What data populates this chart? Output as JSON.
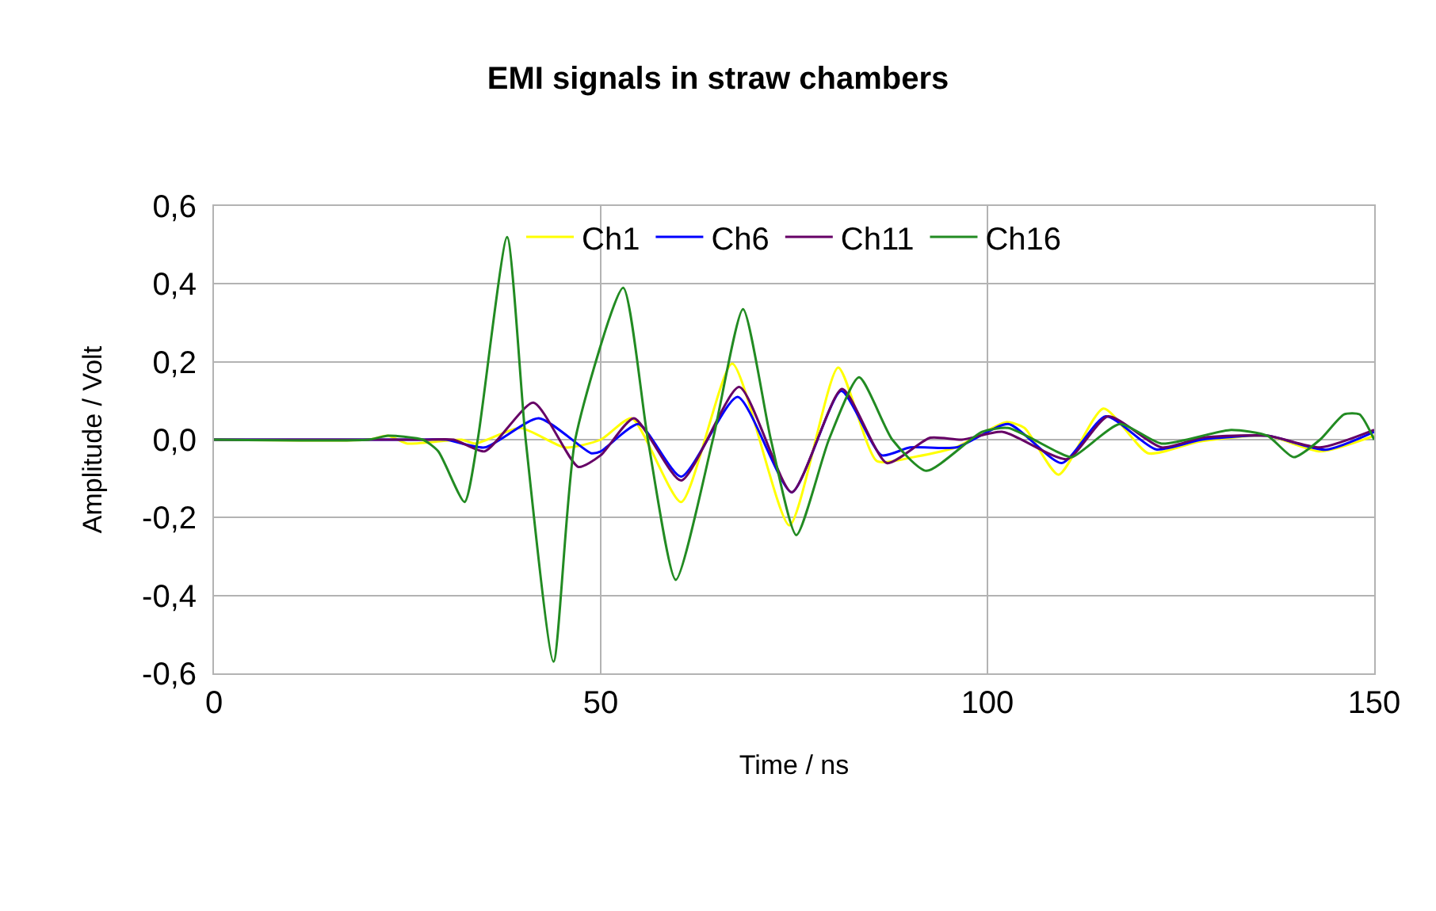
{
  "chart_data": {
    "type": "line",
    "title": "EMI signals in straw chambers",
    "xlabel": "Time / ns",
    "ylabel": "Amplitude / Volt",
    "xlim": [
      0,
      150
    ],
    "xticks": [
      0,
      50,
      100,
      150
    ],
    "ylim": [
      -0.6,
      0.6
    ],
    "yticks": [
      {
        "value": -0.6,
        "label": "-0,6"
      },
      {
        "value": -0.4,
        "label": "-0,4"
      },
      {
        "value": -0.2,
        "label": "-0,2"
      },
      {
        "value": 0,
        "label": "0,0"
      },
      {
        "value": 0.2,
        "label": "0,2"
      },
      {
        "value": 0.4,
        "label": "0,4"
      },
      {
        "value": 0.6,
        "label": "0,6"
      }
    ],
    "grid": true,
    "legend": "top",
    "marker": "none",
    "line_style": "solid",
    "series": [
      {
        "name": "Ch1",
        "color": "#ffff00",
        "x": [
          0,
          20,
          22.5,
          25,
          32,
          33.8,
          39.6,
          45.4,
          50,
          54,
          60.4,
          67,
          74.4,
          80.7,
          85.7,
          90.4,
          95.9,
          102.4,
          104.8,
          109.2,
          115,
          120.8,
          127.3,
          136.2,
          143,
          150
        ],
        "values": [
          0,
          0,
          0.01,
          -0.01,
          0,
          -0.01,
          0.03,
          -0.02,
          0,
          0.055,
          -0.16,
          0.195,
          -0.22,
          0.185,
          -0.055,
          -0.045,
          -0.02,
          0.045,
          0.03,
          -0.09,
          0.08,
          -0.035,
          -0.005,
          0.01,
          -0.03,
          0.01
        ]
      },
      {
        "name": "Ch6",
        "color": "#0000ff",
        "x": [
          0,
          27,
          30,
          35,
          42,
          48.8,
          50,
          54.9,
          60.4,
          67.7,
          74.7,
          81.1,
          86.3,
          90,
          96,
          102.7,
          109.6,
          115.3,
          121.8,
          127.7,
          136.2,
          143.7,
          150
        ],
        "values": [
          0,
          0,
          0,
          -0.02,
          0.055,
          -0.035,
          -0.03,
          0.04,
          -0.095,
          0.11,
          -0.135,
          0.125,
          -0.04,
          -0.02,
          -0.02,
          0.04,
          -0.06,
          0.06,
          -0.025,
          0,
          0.01,
          -0.026,
          0.02
        ]
      },
      {
        "name": "Ch11",
        "color": "#660066",
        "x": [
          0,
          27,
          31,
          35,
          41.3,
          47.1,
          50,
          54.3,
          60.4,
          67.9,
          74.7,
          81.2,
          87,
          92.6,
          96.7,
          102,
          110.3,
          115.6,
          122.5,
          127.7,
          136.2,
          143,
          150
        ],
        "values": [
          0,
          0,
          0,
          -0.03,
          0.095,
          -0.07,
          -0.04,
          0.055,
          -0.105,
          0.135,
          -0.135,
          0.13,
          -0.06,
          0.005,
          0,
          0.02,
          -0.05,
          0.06,
          -0.02,
          0.005,
          0.01,
          -0.02,
          0.025
        ]
      },
      {
        "name": "Ch16",
        "color": "#228b22",
        "x": [
          0,
          20,
          22.5,
          27,
          29,
          32.4,
          34.1,
          37.9,
          40.3,
          43.9,
          46.7,
          52.9,
          56.1,
          59.7,
          64.5,
          68.4,
          72,
          75.3,
          79.5,
          83.4,
          87.7,
          92.1,
          99.3,
          102.7,
          108.9,
          110.9,
          117.1,
          122.5,
          131.5,
          136.2,
          139.6,
          143,
          146.1,
          148.1,
          150
        ],
        "values": [
          0,
          0,
          0.01,
          0,
          -0.03,
          -0.16,
          0,
          0.52,
          0,
          -0.57,
          0,
          0.39,
          0,
          -0.36,
          0,
          0.335,
          0,
          -0.245,
          0,
          0.16,
          0,
          -0.08,
          0.02,
          0.03,
          -0.03,
          -0.045,
          0.04,
          -0.01,
          0.025,
          0.01,
          -0.045,
          0,
          0.065,
          0.065,
          0
        ]
      }
    ]
  }
}
